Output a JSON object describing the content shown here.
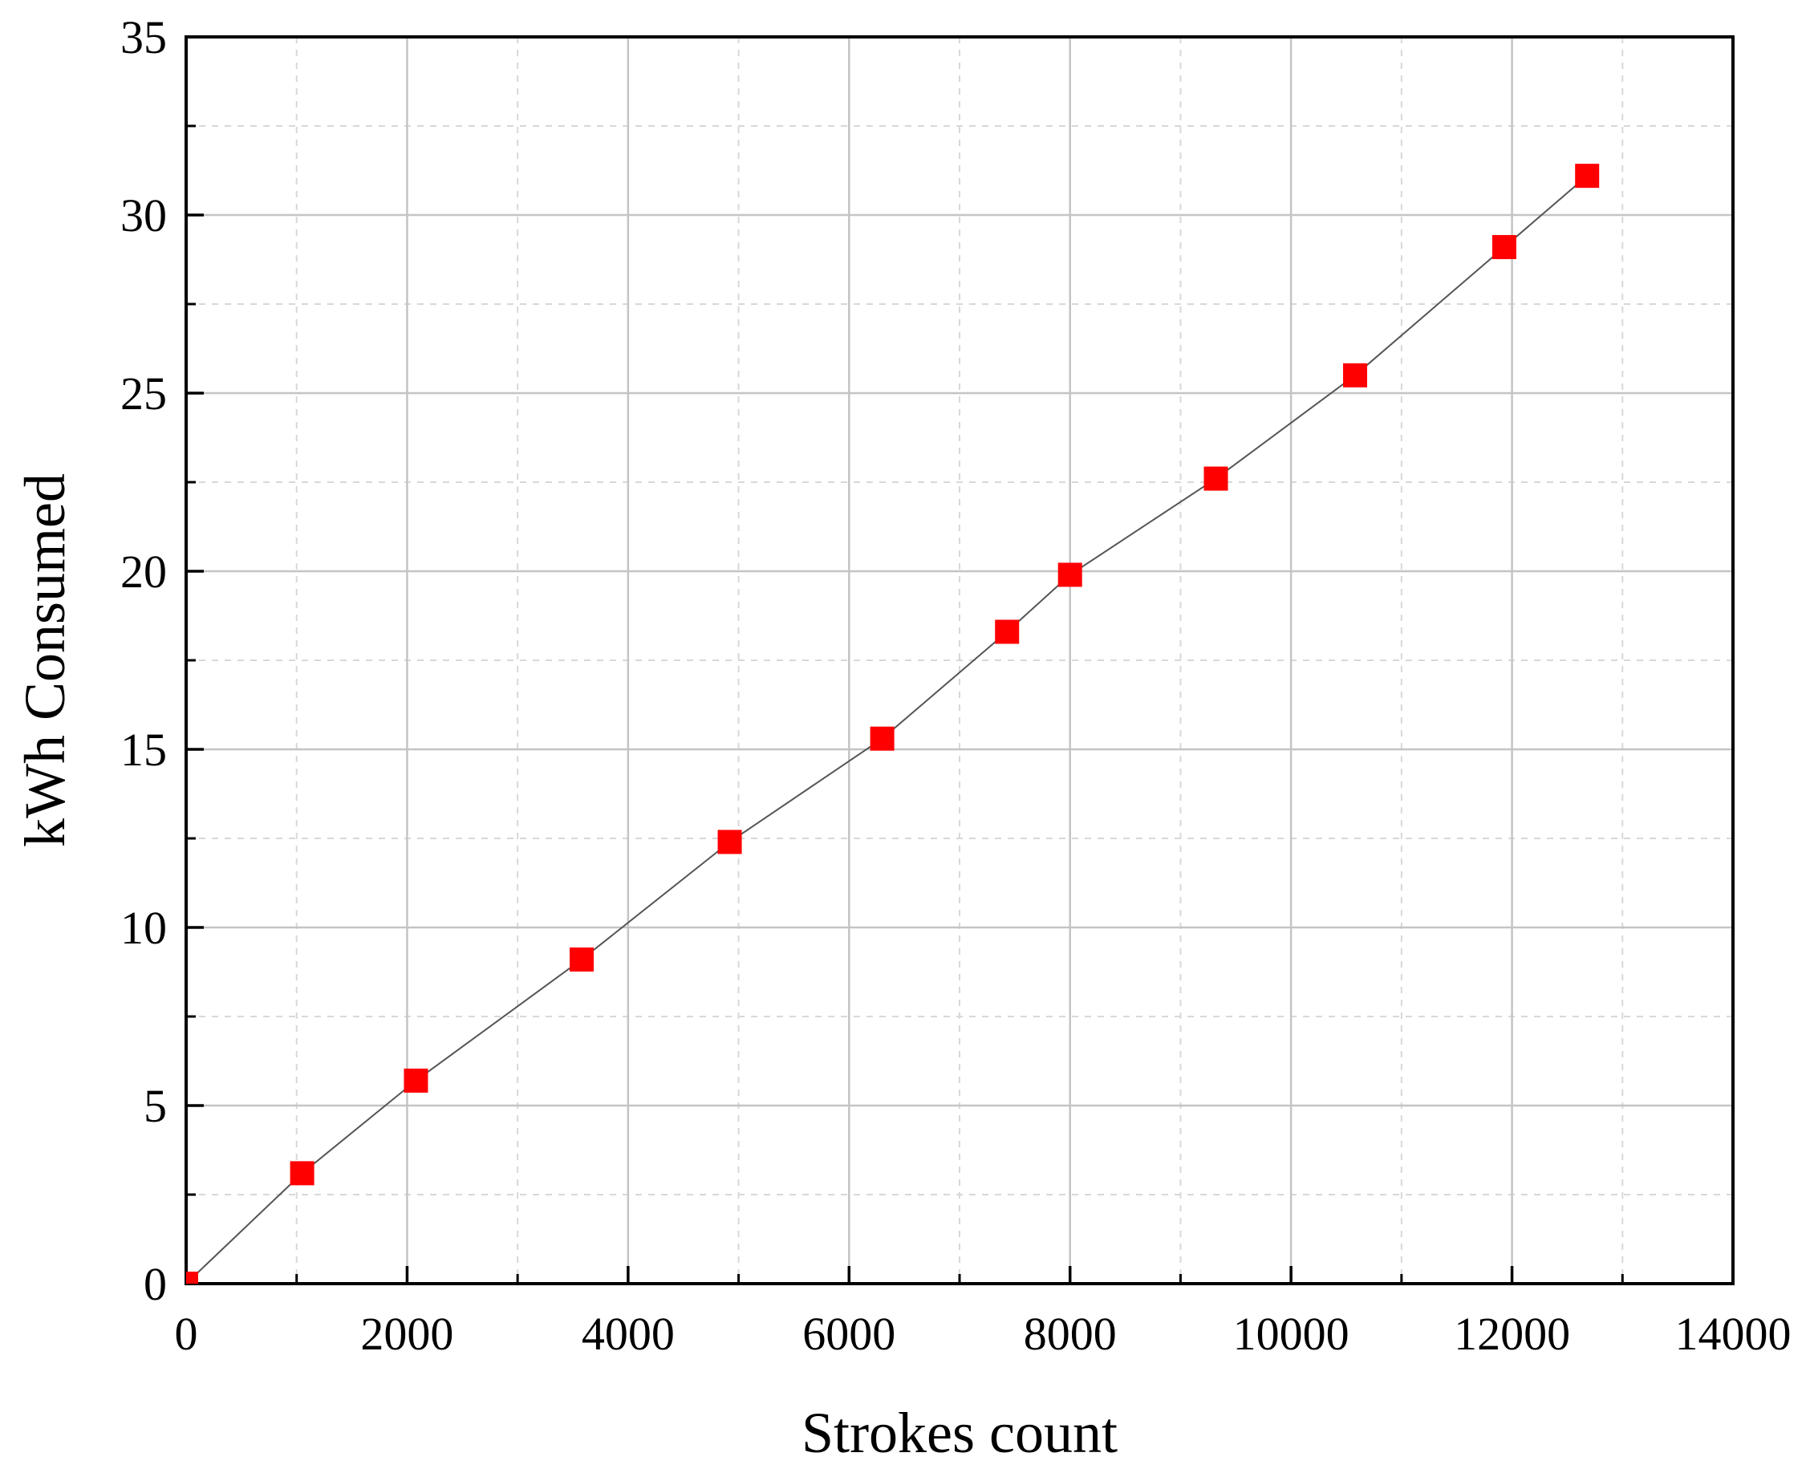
{
  "chart_data": {
    "type": "line",
    "title": "",
    "xlabel": "Strokes count",
    "ylabel": "kWh Consumed",
    "xlim": [
      0,
      14000
    ],
    "ylim": [
      0,
      35
    ],
    "x_ticks": [
      "0",
      "2000",
      "4000",
      "6000",
      "8000",
      "10000",
      "12000",
      "14000"
    ],
    "y_ticks": [
      "0",
      "5",
      "10",
      "15",
      "20",
      "25",
      "30",
      "35"
    ],
    "grid": true,
    "legend": "none",
    "series": [
      {
        "marker": "square",
        "marker_color": "#ff0000",
        "line_color": "#555555",
        "x": [
          0,
          1050,
          2080,
          3580,
          4920,
          6300,
          7430,
          8000,
          9320,
          10580,
          11930,
          12680
        ],
        "y": [
          0,
          3.1,
          5.7,
          9.1,
          12.4,
          15.3,
          18.3,
          19.9,
          22.6,
          25.5,
          29.1,
          31.1
        ]
      }
    ]
  }
}
